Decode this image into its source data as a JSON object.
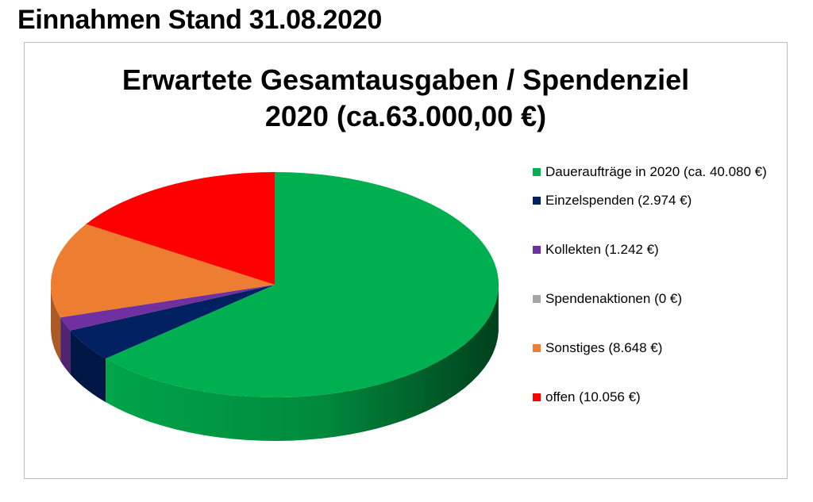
{
  "page": {
    "heading": "Einnahmen Stand 31.08.2020"
  },
  "chart_data": {
    "type": "pie",
    "title_lines": [
      "Erwartete Gesamtausgaben / Spendenziel",
      "2020 (ca.63.000,00 €)"
    ],
    "slices": [
      {
        "label": "Daueraufträge in 2020 (ca. 40.080 €)",
        "value": 40080,
        "color": "#00b050"
      },
      {
        "label": "Einzelspenden (2.974 €)",
        "value": 2974,
        "color": "#002060"
      },
      {
        "label": "Kollekten (1.242 €)",
        "value": 1242,
        "color": "#7030a0"
      },
      {
        "label": "Spendenaktionen (0 €)",
        "value": 0,
        "color": "#a6a6a6"
      },
      {
        "label": "Sonstiges (8.648 €)",
        "value": 8648,
        "color": "#ed7d31"
      },
      {
        "label": "offen (10.056 €)",
        "value": 10056,
        "color": "#ff0000"
      }
    ],
    "legend_position": "right",
    "style": "3d"
  }
}
